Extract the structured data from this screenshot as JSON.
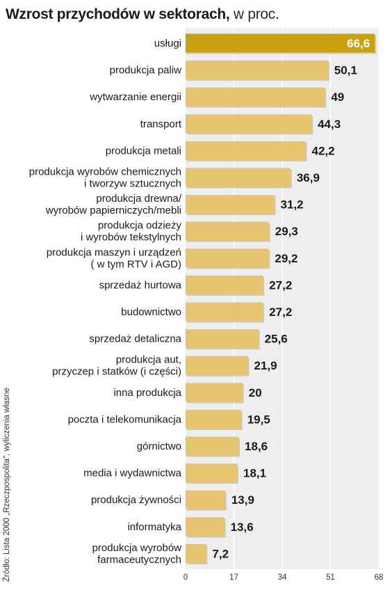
{
  "title": {
    "main": "Wzrost przychodów w sektorach,",
    "sub": " w proc."
  },
  "source": "Źródło: Lista 2000 „Rzeczpospolita\", wyliczenia własne",
  "colors": {
    "bar": "#e7c46f",
    "bar_highlight": "#c9a010",
    "plot_background": "#eeeeee",
    "gridline": "#ffffff"
  },
  "chart_data": {
    "type": "bar",
    "orientation": "horizontal",
    "categories": [
      [
        "usługi"
      ],
      [
        "produkcja paliw"
      ],
      [
        "wytwarzanie energii"
      ],
      [
        "transport"
      ],
      [
        "produkcja metali"
      ],
      [
        "produkcja wyrobów chemicznych",
        "i tworzyw sztucznych"
      ],
      [
        "produkcja drewna/",
        "wyrobów papierniczych/mebli"
      ],
      [
        "produkcja odzieży",
        "i wyrobów tekstylnych"
      ],
      [
        "produkcja maszyn i urządzeń",
        "( w tym RTV i AGD)"
      ],
      [
        "sprzedaż hurtowa"
      ],
      [
        "budownictwo"
      ],
      [
        "sprzedaż detaliczna"
      ],
      [
        "produkcja aut,",
        "przyczep i statków (i części)"
      ],
      [
        "inna produkcja"
      ],
      [
        "poczta i telekomunikacja"
      ],
      [
        "górnictwo"
      ],
      [
        "media i wydawnictwa"
      ],
      [
        "produkcja żywności"
      ],
      [
        "informatyka"
      ],
      [
        "produkcja wyrobów",
        "farmaceutycznych"
      ]
    ],
    "values": [
      66.6,
      50.1,
      49,
      44.3,
      42.2,
      36.9,
      31.2,
      29.3,
      29.2,
      27.2,
      27.2,
      25.6,
      21.9,
      20,
      19.5,
      18.6,
      18.1,
      13.9,
      13.6,
      7.2
    ],
    "value_labels": [
      "66,6",
      "50,1",
      "49",
      "44,3",
      "42,2",
      "36,9",
      "31,2",
      "29,3",
      "29,2",
      "27,2",
      "27,2",
      "25,6",
      "21,9",
      "20",
      "19,5",
      "18,6",
      "18,1",
      "13,9",
      "13,6",
      "7,2"
    ],
    "highlight_index": 0,
    "xlim": [
      0,
      68
    ],
    "xticks": [
      0,
      17,
      34,
      51,
      68
    ],
    "xtick_labels": [
      "0",
      "17",
      "34",
      "51",
      "68"
    ],
    "grid": true
  }
}
